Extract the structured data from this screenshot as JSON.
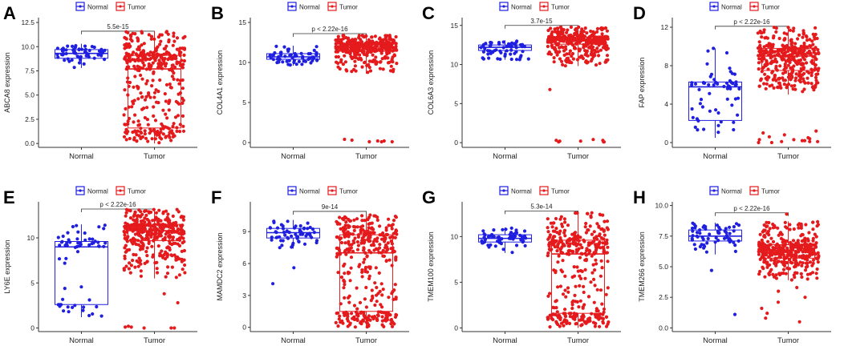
{
  "figure": {
    "legend": {
      "normal_label": "Normal",
      "tumor_label": "Tumor"
    },
    "colors": {
      "normal": "#1f1fe0",
      "tumor": "#e41a1c",
      "axis": "#333333",
      "text": "#222222"
    }
  },
  "chart_data": [
    {
      "type": "box",
      "panel_label": "A",
      "ylabel": "ABCA8 expression",
      "yticks": [
        "0.0",
        "2.5",
        "5.0",
        "7.5",
        "10.0",
        "12.5"
      ],
      "ytick_values": [
        0,
        2.5,
        5,
        7.5,
        10,
        12.5
      ],
      "ylim": [
        -0.4,
        13.0
      ],
      "categories": [
        "Normal",
        "Tumor"
      ],
      "pvalue": "5.5e-15",
      "bracket_y": 11.6,
      "boxes": [
        {
          "name": "Normal",
          "min": 7.8,
          "q1": 8.8,
          "median": 9.3,
          "q3": 9.7,
          "max": 10.3,
          "n": 60
        },
        {
          "name": "Tumor",
          "min": 0.0,
          "q1": 1.6,
          "median": 7.7,
          "q3": 9.1,
          "max": 11.6,
          "n": 380
        }
      ]
    },
    {
      "type": "box",
      "panel_label": "B",
      "ylabel": "COL4A1 expression",
      "yticks": [
        "0",
        "5",
        "10",
        "15"
      ],
      "ytick_values": [
        0,
        5,
        10,
        15
      ],
      "ylim": [
        -0.6,
        15.6
      ],
      "categories": [
        "Normal",
        "Tumor"
      ],
      "pvalue": "p < 2.22e-16",
      "bracket_y": 13.6,
      "boxes": [
        {
          "name": "Normal",
          "min": 9.6,
          "q1": 10.4,
          "median": 10.7,
          "q3": 11.1,
          "max": 12.1,
          "n": 60
        },
        {
          "name": "Tumor",
          "min": 8.6,
          "q1": 11.4,
          "median": 11.9,
          "q3": 12.4,
          "max": 13.4,
          "n": 380
        }
      ],
      "outliers_tumor": [
        0.1,
        0.2,
        0.3,
        0.1,
        0.4,
        0.2,
        0.1
      ]
    },
    {
      "type": "box",
      "panel_label": "C",
      "ylabel": "COL6A3 expression",
      "yticks": [
        "0",
        "5",
        "10",
        "15"
      ],
      "ytick_values": [
        0,
        5,
        10,
        15
      ],
      "ylim": [
        -0.6,
        16.0
      ],
      "categories": [
        "Normal",
        "Tumor"
      ],
      "pvalue": "3.7e-15",
      "bracket_y": 15.0,
      "boxes": [
        {
          "name": "Normal",
          "min": 10.6,
          "q1": 11.8,
          "median": 12.2,
          "q3": 12.5,
          "max": 13.1,
          "n": 60
        },
        {
          "name": "Tumor",
          "min": 9.8,
          "q1": 12.6,
          "median": 13.1,
          "q3": 13.5,
          "max": 14.8,
          "n": 380
        }
      ],
      "outliers_tumor": [
        0.1,
        0.2,
        0.3,
        0.1,
        0.4,
        0.2,
        0.3,
        0.1,
        6.8
      ]
    },
    {
      "type": "box",
      "panel_label": "D",
      "ylabel": "FAP expression",
      "yticks": [
        "0",
        "4",
        "8",
        "12"
      ],
      "ytick_values": [
        0,
        4,
        8,
        12
      ],
      "ylim": [
        -0.5,
        13.0
      ],
      "categories": [
        "Normal",
        "Tumor"
      ],
      "pvalue": "p < 2.22e-16",
      "bracket_y": 12.1,
      "boxes": [
        {
          "name": "Normal",
          "min": 0.5,
          "q1": 2.3,
          "median": 5.8,
          "q3": 6.3,
          "max": 9.8,
          "n": 60
        },
        {
          "name": "Tumor",
          "min": 5.0,
          "q1": 7.5,
          "median": 9.0,
          "q3": 9.8,
          "max": 12.0,
          "n": 380
        }
      ],
      "outliers_tumor": [
        0.0,
        0.1,
        0.2,
        0.3,
        0.5,
        0.8,
        1.0,
        0.4,
        0.1,
        0.2,
        0.6,
        0.0,
        0.3,
        1.2,
        0.1
      ]
    },
    {
      "type": "box",
      "panel_label": "E",
      "ylabel": "LY6E expression",
      "yticks": [
        "0",
        "5",
        "10"
      ],
      "ytick_values": [
        0,
        5,
        10
      ],
      "ylim": [
        -0.4,
        14.0
      ],
      "categories": [
        "Normal",
        "Tumor"
      ],
      "pvalue": "p < 2.22e-16",
      "bracket_y": 13.2,
      "boxes": [
        {
          "name": "Normal",
          "min": 1.2,
          "q1": 2.6,
          "median": 9.0,
          "q3": 9.6,
          "max": 11.5,
          "n": 60
        },
        {
          "name": "Tumor",
          "min": 5.5,
          "q1": 9.7,
          "median": 10.8,
          "q3": 11.5,
          "max": 13.2,
          "n": 380
        }
      ],
      "outliers_tumor": [
        0.0,
        0.1,
        0.0,
        0.2,
        0.1,
        3.8,
        2.8,
        0.0
      ]
    },
    {
      "type": "box",
      "panel_label": "F",
      "ylabel": "MAMDC2 expression",
      "yticks": [
        "0",
        "3",
        "6",
        "9"
      ],
      "ytick_values": [
        0,
        3,
        6,
        9
      ],
      "ylim": [
        -0.4,
        11.8
      ],
      "categories": [
        "Normal",
        "Tumor"
      ],
      "pvalue": "9e-14",
      "bracket_y": 10.9,
      "boxes": [
        {
          "name": "Normal",
          "min": 7.4,
          "q1": 8.4,
          "median": 8.9,
          "q3": 9.3,
          "max": 10.1,
          "n": 60
        },
        {
          "name": "Tumor",
          "min": 0.0,
          "q1": 1.5,
          "median": 7.0,
          "q3": 8.7,
          "max": 10.6,
          "n": 380
        }
      ],
      "outliers_normal": [
        4.1,
        5.6
      ]
    },
    {
      "type": "box",
      "panel_label": "G",
      "ylabel": "TMEM100 expression",
      "yticks": [
        "0",
        "5",
        "10"
      ],
      "ytick_values": [
        0,
        5,
        10
      ],
      "ylim": [
        -0.4,
        13.8
      ],
      "categories": [
        "Normal",
        "Tumor"
      ],
      "pvalue": "5.3e-14",
      "bracket_y": 12.8,
      "boxes": [
        {
          "name": "Normal",
          "min": 8.2,
          "q1": 9.4,
          "median": 9.8,
          "q3": 10.2,
          "max": 11.0,
          "n": 60
        },
        {
          "name": "Tumor",
          "min": 0.0,
          "q1": 1.6,
          "median": 8.1,
          "q3": 9.6,
          "max": 12.6,
          "n": 380
        }
      ]
    },
    {
      "type": "box",
      "panel_label": "H",
      "ylabel": "TMEM266 expression",
      "yticks": [
        "0.0",
        "2.5",
        "5.0",
        "7.5",
        "10.0"
      ],
      "ytick_values": [
        0,
        2.5,
        5,
        7.5,
        10
      ],
      "ylim": [
        -0.3,
        10.3
      ],
      "categories": [
        "Normal",
        "Tumor"
      ],
      "pvalue": "p < 2.22e-16",
      "bracket_y": 9.4,
      "boxes": [
        {
          "name": "Normal",
          "min": 6.0,
          "q1": 7.1,
          "median": 7.5,
          "q3": 8.0,
          "max": 8.6,
          "n": 60
        },
        {
          "name": "Tumor",
          "min": 3.9,
          "q1": 5.7,
          "median": 6.3,
          "q3": 6.8,
          "max": 8.7,
          "n": 380
        }
      ],
      "outliers_normal": [
        1.1,
        4.7
      ],
      "outliers_tumor": [
        0.5,
        0.8,
        1.2,
        1.6,
        2.1,
        2.5,
        3.0,
        3.3,
        9.3
      ]
    }
  ]
}
